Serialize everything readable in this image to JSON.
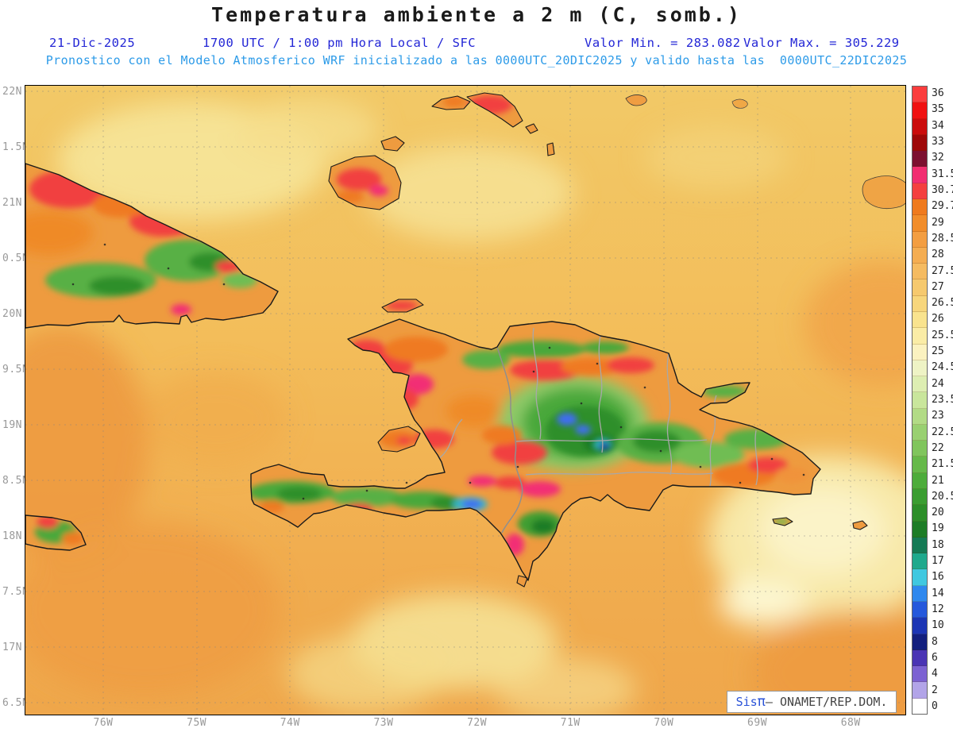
{
  "header": {
    "title": "Temperatura ambiente a 2 m (C, somb.)",
    "date": "21-Dic-2025",
    "time_line": "1700 UTC / 1:00 pm Hora Local / SFC",
    "valor_min": "Valor Min. = 283.082",
    "valor_max": "Valor Max. = 305.229",
    "forecast_line": "Pronostico con el Modelo Atmosferico WRF inicializado a las 0000UTC_20DIC2025 y valido hasta las  0000UTC_22DIC2025"
  },
  "map": {
    "lat_ticks": [
      "22N",
      "1.5N",
      "21N",
      "0.5N",
      "20N",
      "9.5N",
      "19N",
      "8.5N",
      "18N",
      "7.5N",
      "17N",
      "6.5N"
    ],
    "lon_ticks": [
      "76W",
      "75W",
      "74W",
      "73W",
      "72W",
      "71W",
      "70W",
      "69W",
      "68W"
    ],
    "attribution": {
      "brand": "Sis",
      "pi": "π",
      "rest": "– ONAMET/REP.DOM."
    }
  },
  "colorbar": {
    "levels": [
      {
        "label": "36",
        "color": "#fb3d3d"
      },
      {
        "label": "35",
        "color": "#f01111"
      },
      {
        "label": "34",
        "color": "#cb0c0c"
      },
      {
        "label": "33",
        "color": "#9e0808"
      },
      {
        "label": "32",
        "color": "#7c1030"
      },
      {
        "label": "31.5",
        "color": "#f12e71"
      },
      {
        "label": "30.7",
        "color": "#f4403f"
      },
      {
        "label": "29.7",
        "color": "#ef7a1e"
      },
      {
        "label": "29",
        "color": "#f18d2b"
      },
      {
        "label": "28.5",
        "color": "#f39e42"
      },
      {
        "label": "28",
        "color": "#f4ad52"
      },
      {
        "label": "27.5",
        "color": "#f5bb61"
      },
      {
        "label": "27",
        "color": "#f6c96e"
      },
      {
        "label": "26.5",
        "color": "#f7d67c"
      },
      {
        "label": "26",
        "color": "#f9e38e"
      },
      {
        "label": "25.5",
        "color": "#faeca6"
      },
      {
        "label": "25",
        "color": "#fbf2c0"
      },
      {
        "label": "24.5",
        "color": "#eef3c5"
      },
      {
        "label": "24",
        "color": "#ddeeb2"
      },
      {
        "label": "23.5",
        "color": "#c9e69c"
      },
      {
        "label": "23",
        "color": "#b2db86"
      },
      {
        "label": "22.5",
        "color": "#99d071"
      },
      {
        "label": "22",
        "color": "#80c55d"
      },
      {
        "label": "21.5",
        "color": "#66b94a"
      },
      {
        "label": "21",
        "color": "#4dac3b"
      },
      {
        "label": "20.5",
        "color": "#3a9d31"
      },
      {
        "label": "20",
        "color": "#2c8e29"
      },
      {
        "label": "19",
        "color": "#1d7c26"
      },
      {
        "label": "18",
        "color": "#157a55"
      },
      {
        "label": "17",
        "color": "#1fa98d"
      },
      {
        "label": "16",
        "color": "#40c8e0"
      },
      {
        "label": "14",
        "color": "#2f88ee"
      },
      {
        "label": "12",
        "color": "#2558dc"
      },
      {
        "label": "10",
        "color": "#1c35b4"
      },
      {
        "label": "8",
        "color": "#131f7e"
      },
      {
        "label": "6",
        "color": "#4a34b4"
      },
      {
        "label": "4",
        "color": "#7c62d2"
      },
      {
        "label": "2",
        "color": "#b2a4e8"
      },
      {
        "label": "0",
        "color": "#ffffff"
      }
    ]
  }
}
